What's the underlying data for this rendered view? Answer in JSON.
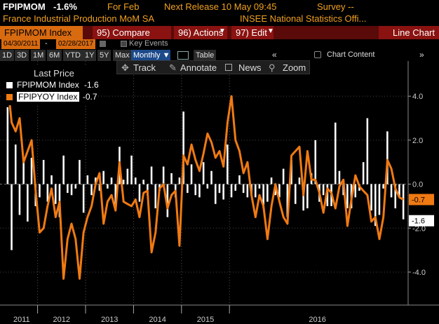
{
  "header": {
    "ticker": "FPIPMOM",
    "change": "-1.6%",
    "period": "For Feb",
    "release": "Next Release 10 May 09:45",
    "survey": "Survey --",
    "description": "France Industrial Production MoM SA",
    "source": "INSEE National Statistics Offi..."
  },
  "toolbar": {
    "security": "FPIPMOM Index",
    "compare": "95) Compare",
    "actions": "96) Actions",
    "edit": "97) Edit",
    "chart_type": "Line Chart"
  },
  "dates": {
    "start": "04/30/2011",
    "separator": "-",
    "end": "02/28/2017",
    "key_events": "Key Events"
  },
  "periods": [
    "1D",
    "3D",
    "1M",
    "6M",
    "YTD",
    "1Y",
    "5Y",
    "Max"
  ],
  "frequency": "Monthly",
  "table_label": "Table",
  "chart_content": "Chart Content",
  "subtools": {
    "track": "Track",
    "annotate": "Annotate",
    "news": "News",
    "zoom": "Zoom"
  },
  "legend": {
    "title": "Last Price",
    "items": [
      {
        "label": "FPIPMOM Index",
        "value": "-1.6",
        "color": "#ffffff"
      },
      {
        "label": "FPIPYOY Index",
        "value": "-0.7",
        "color": "#f07a12"
      }
    ]
  },
  "colors": {
    "mom_bars": "#ffffff",
    "yoy_line": "#f07a12",
    "toolbar": "#8a1210",
    "accent_text": "#f0a020"
  },
  "chart_data": {
    "type": "bar",
    "ylim": [
      -5.5,
      5.6
    ],
    "y_ticks": [
      "4.0",
      "2.0",
      "0.0",
      "-2.0",
      "-4.0"
    ],
    "y_tick_values": [
      4,
      2,
      0,
      -2,
      -4
    ],
    "x_tick_labels": [
      "2011",
      "2012",
      "2013",
      "2014",
      "2015",
      "2016"
    ],
    "x_tick_start_index": [
      0,
      8,
      20,
      32,
      44,
      56
    ],
    "last_labels": [
      "-0.7",
      "-1.6"
    ],
    "series": [
      {
        "name": "FPIPMOM Index",
        "type": "bar",
        "values": [
          3.5,
          -3.0,
          1.8,
          -1.4,
          1.0,
          -1.7,
          1.2,
          -1.0,
          -0.6,
          1.1,
          -0.8,
          0.4,
          -0.9,
          -1.5,
          1.3,
          -0.4,
          -0.5,
          -0.2,
          1.1,
          -1.3,
          0.4,
          -0.5,
          0.3,
          -0.3,
          0.6,
          -0.2,
          0.3,
          -1.1,
          1.7,
          0.2,
          0.7,
          1.3,
          0.3,
          -0.8,
          0.2,
          -0.5,
          0.8,
          -1.1,
          -0.3,
          0.8,
          -1.5,
          0.5,
          -0.6,
          0.3,
          3.3,
          -0.4,
          0.9,
          -0.5,
          -0.6,
          1.0,
          -0.2,
          0.6,
          -0.9,
          -0.4,
          -0.7,
          1.8,
          -0.6,
          -0.3,
          0.4,
          -0.4,
          -0.6,
          -0.5,
          -0.6,
          -0.2,
          -1.1,
          -0.8,
          0.3,
          -0.5,
          -0.6,
          0.7,
          -1.5,
          1.1,
          -0.9,
          0.3,
          -1.2,
          -1.1,
          0.5,
          2.0,
          -0.8,
          -0.5,
          -1.0,
          -1.0,
          2.8,
          0.6,
          -0.5,
          -1.1,
          -1.1,
          -0.6,
          -0.3,
          1.0,
          3.0,
          -1.2,
          -1.9,
          -1.4,
          -0.2,
          2.4,
          -0.6,
          -1.1,
          -0.6,
          -1.6
        ]
      },
      {
        "name": "FPIPYOY Index",
        "type": "line",
        "values": [
          4.6,
          2.8,
          2.4,
          3.0,
          1.0,
          1.5,
          2.0,
          -0.3,
          -2.2,
          -2.0,
          -1.0,
          -0.2,
          -1.5,
          -0.8,
          -4.3,
          -2.5,
          -1.8,
          -2.5,
          -4.3,
          -2.2,
          -1.5,
          -1.0,
          0.0,
          0.5,
          -1.8,
          -0.8,
          -0.5,
          -1.2,
          1.0,
          -0.8,
          -0.9,
          -1.0,
          -0.7,
          -1.5,
          -0.4,
          -0.3,
          -3.1,
          -2.2,
          -0.2,
          0.0,
          -1.1,
          -0.5,
          -0.3,
          -2.8,
          1.3,
          0.9,
          1.8,
          1.1,
          0.6,
          1.4,
          2.3,
          1.9,
          1.2,
          1.5,
          0.8,
          2.8,
          4.0,
          2.0,
          1.5,
          0.5,
          1.0,
          -0.5,
          -1.5,
          -0.5,
          -1.0,
          -2.5,
          -1.0,
          0.0,
          -0.8,
          -1.5,
          -1.8,
          1.3,
          1.5,
          1.7,
          -0.5,
          1.5,
          0.2,
          0.2,
          -0.4,
          -1.3,
          -0.2,
          -0.4,
          -1.1,
          -0.1,
          0.2,
          -1.9,
          -0.7,
          0.4,
          -0.1,
          -0.3,
          -0.5,
          -1.7,
          -1.5,
          -2.5,
          -1.5,
          1.1,
          0.7,
          -0.2,
          -0.6,
          -0.7
        ]
      }
    ]
  }
}
